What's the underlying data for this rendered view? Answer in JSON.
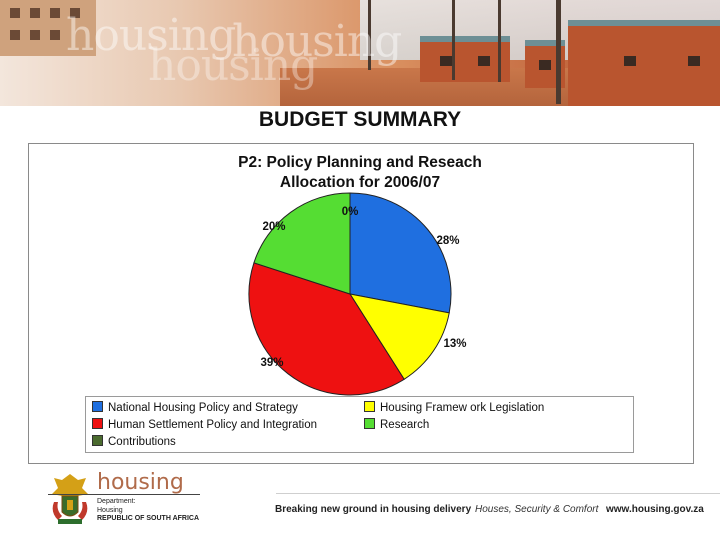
{
  "banner": {
    "watermark_1": "housing",
    "watermark_2": "housing",
    "watermark_3": "housing"
  },
  "slide_title": "BUDGET SUMMARY",
  "chart_data": {
    "type": "pie",
    "title_line1": "P2: Policy Planning and Reseach",
    "title_line2": "Allocation for 2006/07",
    "slices": [
      {
        "label": "National Housing Policy and Strategy",
        "value": 28,
        "display": "28%",
        "color": "#1f6fe0"
      },
      {
        "label": "Housing Framework Legislation",
        "value": 13,
        "display": "13%",
        "color": "#ffff00"
      },
      {
        "label": "Human Settlement Policy and Integration",
        "value": 39,
        "display": "39%",
        "color": "#ee1111"
      },
      {
        "label": "Research",
        "value": 20,
        "display": "20%",
        "color": "#55dd33"
      },
      {
        "label": "Contributions",
        "value": 0,
        "display": "0%",
        "color": "#4b6b2f"
      }
    ],
    "legend": [
      "National Housing Policy and Strategy",
      "Housing Framew ork Legislation",
      "Human Settlement Policy and Integration",
      "Research",
      "Contributions"
    ]
  },
  "footer": {
    "brand": "housing",
    "dept_line1": "Department:",
    "dept_line2": "Housing",
    "dept_line3": "REPUBLIC OF SOUTH AFRICA",
    "tagline": "Breaking new ground in housing delivery",
    "motto": "Houses, Security & Comfort",
    "website": "www.housing.gov.za"
  }
}
